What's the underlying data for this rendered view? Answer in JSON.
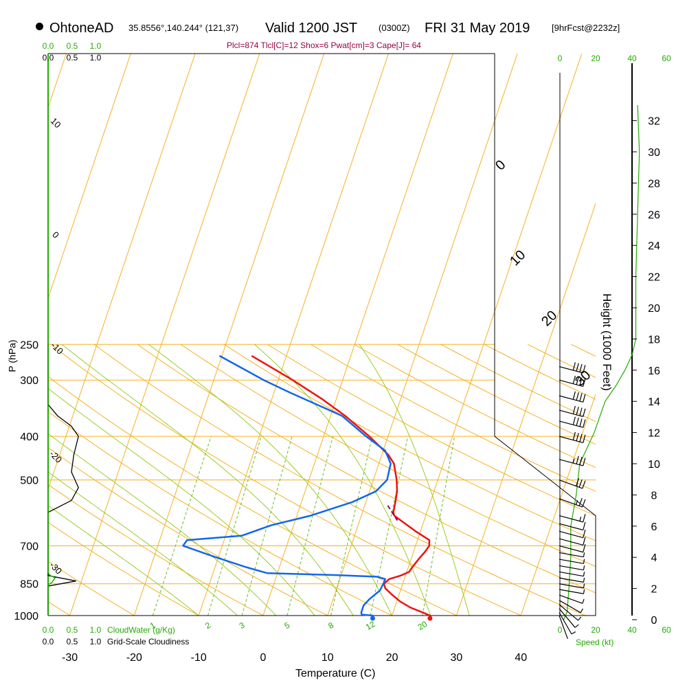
{
  "header": {
    "site": "OhtoneAD",
    "coords": "35.8556°,140.244° (121,37)",
    "valid": "Valid 1200 JST",
    "zulu": "(0300Z)",
    "date": "FRI 31 May 2019",
    "forecast": "[9hrFcst@2232z]"
  },
  "stats_line": "Plcl=874 Tlcl[C]=12 Shox=6 Pwat[cm]=3 Cape[J]= 64",
  "chart_data": {
    "type": "skew-t",
    "xlabel": "Temperature (C)",
    "ylabel": "P (hPa)",
    "height_label": "Height (1000 Feet)",
    "pressure_ticks": [
      "250",
      "300",
      "400",
      "500",
      "700",
      "850",
      "1000"
    ],
    "temp_ticks": [
      "-30",
      "-20",
      "-10",
      "0",
      "10",
      "20",
      "30",
      "40"
    ],
    "height_ticks": [
      "0",
      "2",
      "4",
      "6",
      "8",
      "10",
      "12",
      "14",
      "16",
      "18",
      "20",
      "22",
      "24",
      "26",
      "28",
      "30",
      "32"
    ],
    "mixing_ratio_labels": [
      "1",
      "2",
      "3",
      "5",
      "8",
      "12",
      "20"
    ],
    "dry_adiabat_labels_left": [
      "10",
      "0",
      "-10",
      "-20",
      "-30"
    ],
    "dry_adiabat_labels_right": [
      "0",
      "10",
      "20",
      "30"
    ],
    "cloud_water_ticks": [
      "0.0",
      "0.5",
      "1.0"
    ],
    "cloud_water_label": "CloudWater (g/Kg)",
    "cloudiness_ticks": [
      "0.0",
      "0.5",
      "1.0"
    ],
    "cloudiness_label": "Grid-Scale Cloudiness",
    "wind_speed_ticks": [
      "0",
      "20",
      "40",
      "60"
    ],
    "wind_speed_label": "Speed (kt)",
    "temperature_profile": [
      {
        "p": 1000,
        "t": 25.9
      },
      {
        "p": 985,
        "t": 24.5
      },
      {
        "p": 960,
        "t": 22.0
      },
      {
        "p": 930,
        "t": 19.7
      },
      {
        "p": 900,
        "t": 17.8
      },
      {
        "p": 870,
        "t": 16.0
      },
      {
        "p": 850,
        "t": 15.3
      },
      {
        "p": 830,
        "t": 15.6
      },
      {
        "p": 815,
        "t": 17.0
      },
      {
        "p": 800,
        "t": 17.9
      },
      {
        "p": 780,
        "t": 17.9
      },
      {
        "p": 750,
        "t": 18.0
      },
      {
        "p": 720,
        "t": 18.2
      },
      {
        "p": 700,
        "t": 18.2
      },
      {
        "p": 680,
        "t": 17.6
      },
      {
        "p": 650,
        "t": 14.5
      },
      {
        "p": 600,
        "t": 9.5
      },
      {
        "p": 590,
        "t": 9.0
      },
      {
        "p": 560,
        "t": 8.2
      },
      {
        "p": 530,
        "t": 7.3
      },
      {
        "p": 500,
        "t": 6.0
      },
      {
        "p": 460,
        "t": 3.8
      },
      {
        "p": 440,
        "t": 2.0
      },
      {
        "p": 400,
        "t": -3.0
      },
      {
        "p": 360,
        "t": -9.0
      },
      {
        "p": 330,
        "t": -14.5
      },
      {
        "p": 300,
        "t": -21.0
      },
      {
        "p": 265,
        "t": -30.0
      }
    ],
    "dewpoint_profile": [
      {
        "p": 1000,
        "t": 17.0
      },
      {
        "p": 995,
        "t": 15.2
      },
      {
        "p": 985,
        "t": 14.9
      },
      {
        "p": 950,
        "t": 14.5
      },
      {
        "p": 920,
        "t": 14.7
      },
      {
        "p": 880,
        "t": 15.4
      },
      {
        "p": 850,
        "t": 15.2
      },
      {
        "p": 830,
        "t": 15.0
      },
      {
        "p": 820,
        "t": 13.5
      },
      {
        "p": 813,
        "t": 7.0
      },
      {
        "p": 805,
        "t": -4.0
      },
      {
        "p": 780,
        "t": -8.0
      },
      {
        "p": 740,
        "t": -14.0
      },
      {
        "p": 700,
        "t": -20.0
      },
      {
        "p": 680,
        "t": -20.0
      },
      {
        "p": 665,
        "t": -12.0
      },
      {
        "p": 630,
        "t": -8.5
      },
      {
        "p": 600,
        "t": -3.5
      },
      {
        "p": 560,
        "t": 1.5
      },
      {
        "p": 530,
        "t": 4.0
      },
      {
        "p": 500,
        "t": 4.5
      },
      {
        "p": 460,
        "t": 3.3
      },
      {
        "p": 430,
        "t": 1.0
      },
      {
        "p": 400,
        "t": -3.5
      },
      {
        "p": 360,
        "t": -9.5
      },
      {
        "p": 320,
        "t": -20.0
      },
      {
        "p": 300,
        "t": -25.5
      },
      {
        "p": 265,
        "t": -35.0
      }
    ],
    "surface_temp": 25.9,
    "surface_dewpoint": 17.0,
    "parcel_segment": [
      {
        "p": 570,
        "t": 7.4
      },
      {
        "p": 615,
        "t": 10.5
      }
    ],
    "cloud_water_profile": [
      {
        "p": 1000,
        "v": 0.0
      },
      {
        "p": 855,
        "v": 0.0
      },
      {
        "p": 845,
        "v": 0.08
      },
      {
        "p": 825,
        "v": 0.15
      },
      {
        "p": 815,
        "v": 0.05
      },
      {
        "p": 805,
        "v": 0.0
      },
      {
        "p": 250,
        "v": 0.0
      }
    ],
    "cloudiness_profile": [
      {
        "p": 1000,
        "v": 0.0
      },
      {
        "p": 860,
        "v": 0.0
      },
      {
        "p": 838,
        "v": 0.6
      },
      {
        "p": 815,
        "v": 0.0
      },
      {
        "p": 805,
        "v": 0.0
      },
      {
        "p": 590,
        "v": 0.0
      },
      {
        "p": 555,
        "v": 0.5
      },
      {
        "p": 520,
        "v": 0.65
      },
      {
        "p": 480,
        "v": 0.5
      },
      {
        "p": 440,
        "v": 0.55
      },
      {
        "p": 400,
        "v": 0.65
      },
      {
        "p": 380,
        "v": 0.5
      },
      {
        "p": 360,
        "v": 0.2
      },
      {
        "p": 340,
        "v": 0.0
      },
      {
        "p": 250,
        "v": 0.0
      }
    ],
    "wind_speed_profile": [
      {
        "h": 0.0,
        "v": 2
      },
      {
        "h": 0.5,
        "v": 4
      },
      {
        "h": 2.0,
        "v": 5
      },
      {
        "h": 4.0,
        "v": 6
      },
      {
        "h": 6.0,
        "v": 6
      },
      {
        "h": 8.0,
        "v": 9
      },
      {
        "h": 9.0,
        "v": 10
      },
      {
        "h": 10.0,
        "v": 11
      },
      {
        "h": 11.0,
        "v": 15
      },
      {
        "h": 12.0,
        "v": 19
      },
      {
        "h": 13.0,
        "v": 22
      },
      {
        "h": 14.0,
        "v": 25
      },
      {
        "h": 15.0,
        "v": 31
      },
      {
        "h": 16.0,
        "v": 36
      },
      {
        "h": 17.0,
        "v": 40
      },
      {
        "h": 18.0,
        "v": 42
      },
      {
        "h": 22.0,
        "v": 42
      },
      {
        "h": 26.0,
        "v": 43
      },
      {
        "h": 30.0,
        "v": 44
      },
      {
        "h": 33.0,
        "v": 43
      }
    ],
    "wind_barbs": [
      {
        "p": 1000,
        "dir": 200,
        "kt": 4
      },
      {
        "p": 985,
        "dir": 210,
        "kt": 5
      },
      {
        "p": 965,
        "dir": 220,
        "kt": 5
      },
      {
        "p": 945,
        "dir": 230,
        "kt": 5
      },
      {
        "p": 925,
        "dir": 240,
        "kt": 6
      },
      {
        "p": 900,
        "dir": 250,
        "kt": 6
      },
      {
        "p": 875,
        "dir": 260,
        "kt": 5
      },
      {
        "p": 850,
        "dir": 260,
        "kt": 6
      },
      {
        "p": 825,
        "dir": 260,
        "kt": 7
      },
      {
        "p": 800,
        "dir": 260,
        "kt": 8
      },
      {
        "p": 775,
        "dir": 260,
        "kt": 8
      },
      {
        "p": 750,
        "dir": 260,
        "kt": 9
      },
      {
        "p": 725,
        "dir": 260,
        "kt": 9
      },
      {
        "p": 700,
        "dir": 255,
        "kt": 10
      },
      {
        "p": 675,
        "dir": 255,
        "kt": 10
      },
      {
        "p": 650,
        "dir": 255,
        "kt": 12
      },
      {
        "p": 625,
        "dir": 255,
        "kt": 14
      },
      {
        "p": 600,
        "dir": 255,
        "kt": 18
      },
      {
        "p": 550,
        "dir": 250,
        "kt": 25
      },
      {
        "p": 500,
        "dir": 250,
        "kt": 30
      },
      {
        "p": 450,
        "dir": 255,
        "kt": 35
      },
      {
        "p": 400,
        "dir": 255,
        "kt": 40
      },
      {
        "p": 370,
        "dir": 255,
        "kt": 40
      },
      {
        "p": 350,
        "dir": 255,
        "kt": 40
      },
      {
        "p": 325,
        "dir": 255,
        "kt": 40
      },
      {
        "p": 300,
        "dir": 255,
        "kt": 40
      },
      {
        "p": 280,
        "dir": 255,
        "kt": 40
      }
    ]
  }
}
